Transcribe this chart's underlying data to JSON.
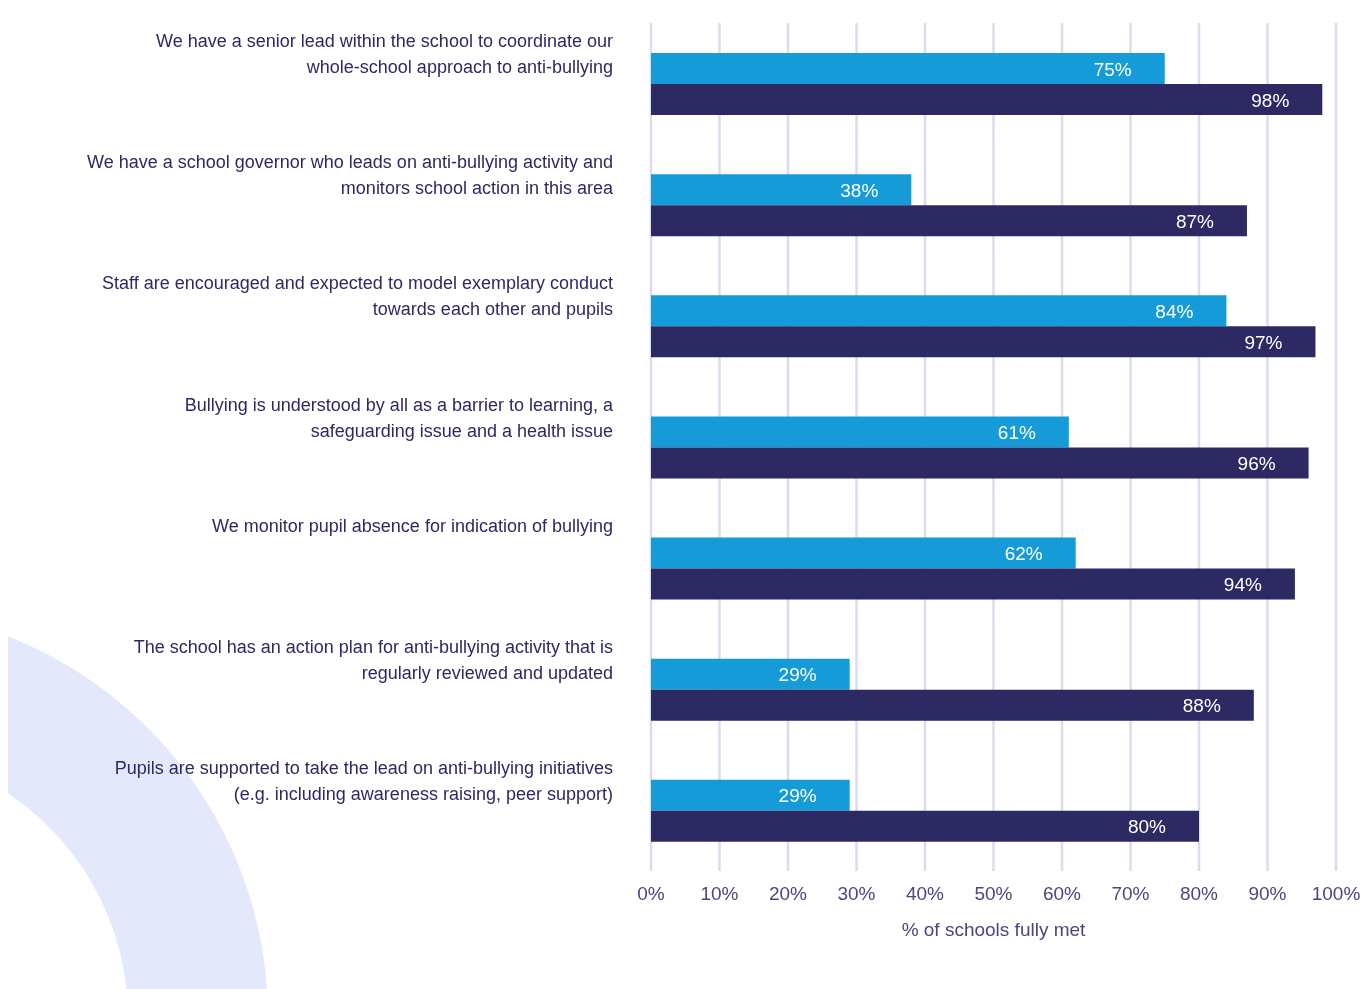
{
  "chart_data": {
    "type": "bar",
    "orientation": "horizontal",
    "xlabel": "% of schools fully met",
    "categories": [
      "We have a senior lead within the school to coordinate our whole-school approach to anti-bullying",
      "We have a school governor who leads on anti-bullying activity and monitors school action in this area",
      "Staff are encouraged and expected to model exemplary conduct towards each other and pupils",
      "Bullying is understood by all as a barrier to learning, a safeguarding issue and a health issue",
      "We monitor pupil absence for indication of bullying",
      "The school has an action plan for anti-bullying activity that is regularly reviewed and updated",
      "Pupils are supported to take the lead on anti-bullying initiatives (e.g. including awareness raising, peer support)"
    ],
    "series": [
      {
        "color": "#159bd7",
        "values": [
          75,
          38,
          84,
          61,
          62,
          29,
          29
        ],
        "value_labels": [
          "75%",
          "38%",
          "84%",
          "61%",
          "62%",
          "29%",
          "29%"
        ]
      },
      {
        "color": "#2d2963",
        "values": [
          98,
          87,
          97,
          96,
          94,
          88,
          80
        ],
        "value_labels": [
          "98%",
          "87%",
          "97%",
          "96%",
          "94%",
          "88%",
          "80%"
        ]
      }
    ],
    "xlim": [
      0,
      100
    ],
    "xticks": [
      {
        "value": 0,
        "label": "0%"
      },
      {
        "value": 10,
        "label": "10%"
      },
      {
        "value": 20,
        "label": "20%"
      },
      {
        "value": 30,
        "label": "30%"
      },
      {
        "value": 40,
        "label": "40%"
      },
      {
        "value": 50,
        "label": "50%"
      },
      {
        "value": 60,
        "label": "60%"
      },
      {
        "value": 70,
        "label": "70%"
      },
      {
        "value": 80,
        "label": "80%"
      },
      {
        "value": 90,
        "label": "90%"
      },
      {
        "value": 100,
        "label": "100%"
      }
    ],
    "grid": "x"
  }
}
